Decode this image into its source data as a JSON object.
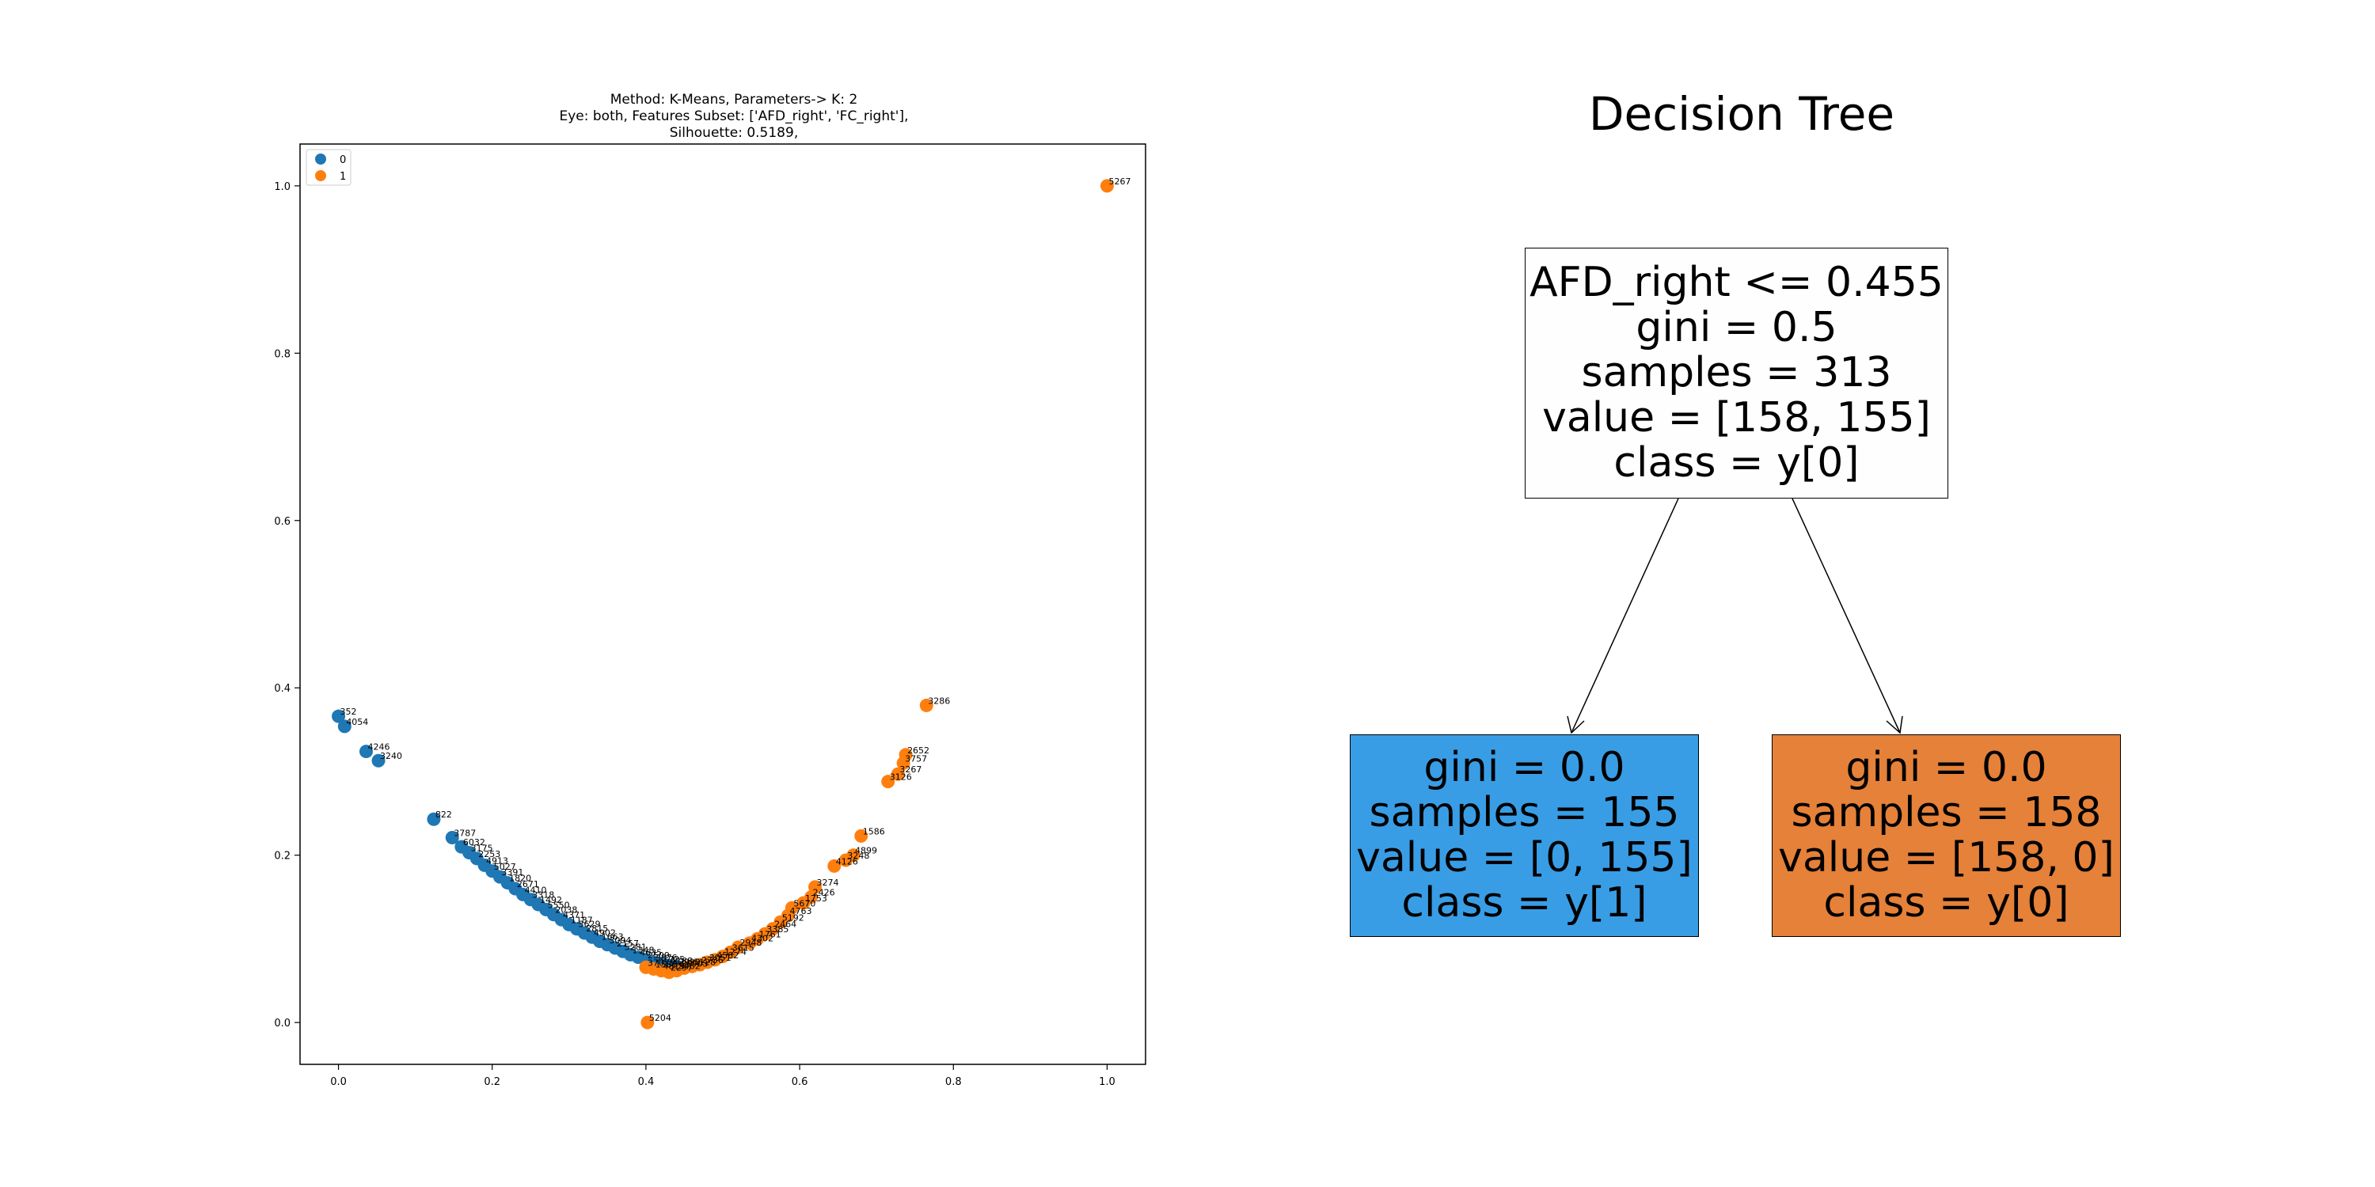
{
  "chart_data": [
    {
      "type": "scatter",
      "title_lines": [
        "Method: K-Means, Parameters-> K: 2",
        "Eye: both, Features Subset: ['AFD_right', 'FC_right'],",
        "Silhouette: 0.5189,"
      ],
      "xlabel": "",
      "ylabel": "",
      "xlim": [
        -0.05,
        1.05
      ],
      "ylim": [
        -0.05,
        1.05
      ],
      "xticks": [
        "0.0",
        "0.2",
        "0.4",
        "0.6",
        "0.8",
        "1.0"
      ],
      "yticks": [
        "0.0",
        "0.2",
        "0.4",
        "0.6",
        "0.8",
        "1.0"
      ],
      "legend": {
        "position": "upper-left",
        "entries": [
          "0",
          "1"
        ]
      },
      "colors": {
        "0": "#1f77b4",
        "1": "#ff7f0e"
      },
      "grid": false,
      "series": [
        {
          "name": "0",
          "points": [
            {
              "x": 0.0,
              "y": 0.366,
              "label": "352"
            },
            {
              "x": 0.008,
              "y": 0.354,
              "label": "4054"
            },
            {
              "x": 0.036,
              "y": 0.324,
              "label": "4246"
            },
            {
              "x": 0.052,
              "y": 0.313,
              "label": "3240"
            },
            {
              "x": 0.124,
              "y": 0.243,
              "label": "822"
            },
            {
              "x": 0.148,
              "y": 0.221,
              "label": "3787"
            },
            {
              "x": 0.16,
              "y": 0.21,
              "label": "6032"
            },
            {
              "x": 0.17,
              "y": 0.203,
              "label": "3175"
            },
            {
              "x": 0.18,
              "y": 0.196,
              "label": "2253"
            },
            {
              "x": 0.19,
              "y": 0.188,
              "label": "4913"
            },
            {
              "x": 0.2,
              "y": 0.181,
              "label": "5027"
            },
            {
              "x": 0.21,
              "y": 0.174,
              "label": "3391"
            },
            {
              "x": 0.22,
              "y": 0.167,
              "label": "1820"
            },
            {
              "x": 0.23,
              "y": 0.16,
              "label": "2671"
            },
            {
              "x": 0.24,
              "y": 0.153,
              "label": "4410"
            },
            {
              "x": 0.25,
              "y": 0.147,
              "label": "3318"
            },
            {
              "x": 0.26,
              "y": 0.141,
              "label": "1492"
            },
            {
              "x": 0.27,
              "y": 0.135,
              "label": "5550"
            },
            {
              "x": 0.28,
              "y": 0.129,
              "label": "2038"
            },
            {
              "x": 0.29,
              "y": 0.123,
              "label": "4371"
            },
            {
              "x": 0.3,
              "y": 0.117,
              "label": "1187"
            },
            {
              "x": 0.31,
              "y": 0.112,
              "label": "3629"
            },
            {
              "x": 0.32,
              "y": 0.107,
              "label": "2815"
            },
            {
              "x": 0.33,
              "y": 0.102,
              "label": "4902"
            },
            {
              "x": 0.34,
              "y": 0.097,
              "label": "1663"
            },
            {
              "x": 0.35,
              "y": 0.093,
              "label": "3094"
            },
            {
              "x": 0.36,
              "y": 0.089,
              "label": "2157"
            },
            {
              "x": 0.37,
              "y": 0.085,
              "label": "5281"
            },
            {
              "x": 0.38,
              "y": 0.081,
              "label": "1348"
            },
            {
              "x": 0.39,
              "y": 0.078,
              "label": "4635"
            },
            {
              "x": 0.4,
              "y": 0.075,
              "label": "2509"
            },
            {
              "x": 0.41,
              "y": 0.072,
              "label": "3876"
            },
            {
              "x": 0.42,
              "y": 0.07,
              "label": "1725"
            },
            {
              "x": 0.43,
              "y": 0.068,
              "label": "4188"
            },
            {
              "x": 0.44,
              "y": 0.067,
              "label": "2990"
            }
          ]
        },
        {
          "name": "1",
          "points": [
            {
              "x": 1.0,
              "y": 1.0,
              "label": "5267"
            },
            {
              "x": 0.402,
              "y": 0.0,
              "label": "5204"
            },
            {
              "x": 0.765,
              "y": 0.379,
              "label": "3286"
            },
            {
              "x": 0.738,
              "y": 0.32,
              "label": "2652"
            },
            {
              "x": 0.735,
              "y": 0.31,
              "label": "3757"
            },
            {
              "x": 0.728,
              "y": 0.297,
              "label": "3267"
            },
            {
              "x": 0.715,
              "y": 0.288,
              "label": "3126"
            },
            {
              "x": 0.68,
              "y": 0.223,
              "label": "1586"
            },
            {
              "x": 0.67,
              "y": 0.2,
              "label": "4899"
            },
            {
              "x": 0.66,
              "y": 0.194,
              "label": "3248"
            },
            {
              "x": 0.645,
              "y": 0.187,
              "label": "4126"
            },
            {
              "x": 0.62,
              "y": 0.162,
              "label": "3274"
            },
            {
              "x": 0.615,
              "y": 0.15,
              "label": "2426"
            },
            {
              "x": 0.605,
              "y": 0.143,
              "label": "1753"
            },
            {
              "x": 0.59,
              "y": 0.137,
              "label": "5670"
            },
            {
              "x": 0.585,
              "y": 0.128,
              "label": "4763"
            },
            {
              "x": 0.575,
              "y": 0.12,
              "label": "5192"
            },
            {
              "x": 0.565,
              "y": 0.112,
              "label": "2464"
            },
            {
              "x": 0.555,
              "y": 0.106,
              "label": "3385"
            },
            {
              "x": 0.545,
              "y": 0.1,
              "label": "1761"
            },
            {
              "x": 0.535,
              "y": 0.095,
              "label": "4302"
            },
            {
              "x": 0.52,
              "y": 0.09,
              "label": "2948"
            },
            {
              "x": 0.51,
              "y": 0.084,
              "label": "3615"
            },
            {
              "x": 0.5,
              "y": 0.079,
              "label": "1274"
            },
            {
              "x": 0.49,
              "y": 0.075,
              "label": "4582"
            },
            {
              "x": 0.48,
              "y": 0.072,
              "label": "3051"
            },
            {
              "x": 0.47,
              "y": 0.069,
              "label": "2736"
            },
            {
              "x": 0.46,
              "y": 0.067,
              "label": "5128"
            },
            {
              "x": 0.45,
              "y": 0.065,
              "label": "1903"
            },
            {
              "x": 0.44,
              "y": 0.062,
              "label": "3462"
            },
            {
              "x": 0.43,
              "y": 0.06,
              "label": "2297"
            },
            {
              "x": 0.42,
              "y": 0.062,
              "label": "4819"
            },
            {
              "x": 0.41,
              "y": 0.064,
              "label": "1588"
            },
            {
              "x": 0.4,
              "y": 0.066,
              "label": "3707"
            }
          ]
        }
      ]
    }
  ],
  "tree": {
    "title": "Decision Tree",
    "root": {
      "lines": [
        "AFD_right <= 0.455",
        "gini = 0.5",
        "samples = 313",
        "value = [158, 155]",
        "class = y[0]"
      ],
      "fill": "#fffefe"
    },
    "left": {
      "lines": [
        "gini = 0.0",
        "samples = 155",
        "value = [0, 155]",
        "class = y[1]"
      ],
      "fill": "#399de5"
    },
    "right": {
      "lines": [
        "gini = 0.0",
        "samples = 158",
        "value = [158, 0]",
        "class = y[0]"
      ],
      "fill": "#e58139"
    }
  }
}
